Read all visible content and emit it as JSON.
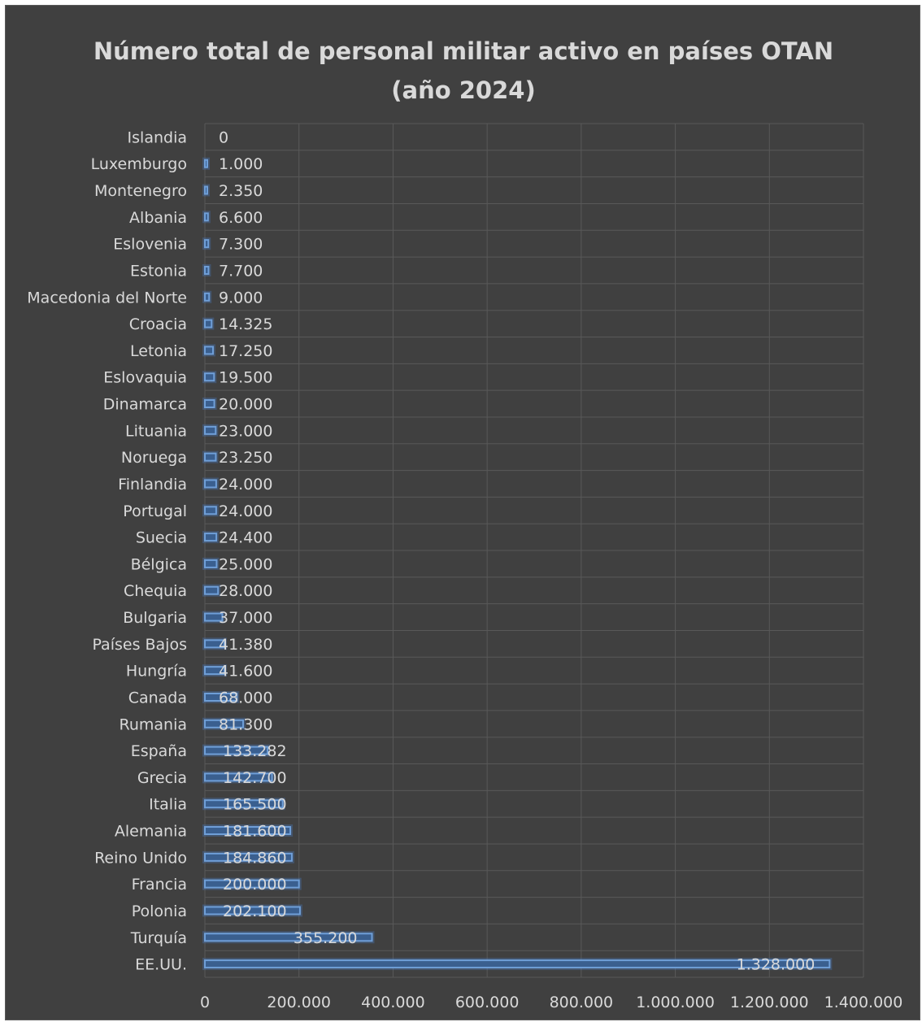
{
  "colors": {
    "background": "#404040",
    "text": "#d9d9d9",
    "grid": "#595959",
    "bar_fill": "#3a5f8f",
    "bar_outline": "#6f9fd8"
  },
  "chart_data": {
    "type": "bar",
    "orientation": "horizontal",
    "title_line1": "Número total de personal militar activo en países OTAN",
    "title_line2": "(año 2024)",
    "categories": [
      "Islandia",
      "Luxemburgo",
      "Montenegro",
      "Albania",
      "Eslovenia",
      "Estonia",
      "Macedonia del Norte",
      "Croacia",
      "Letonia",
      "Eslovaquia",
      "Dinamarca",
      "Lituania",
      "Noruega",
      "Finlandia",
      "Portugal",
      "Suecia",
      "Bélgica",
      "Chequia",
      "Bulgaria",
      "Países Bajos",
      "Hungría",
      "Canada",
      "Rumania",
      "España",
      "Grecia",
      "Italia",
      "Alemania",
      "Reino Unido",
      "Francia",
      "Polonia",
      "Turquía",
      "EE.UU."
    ],
    "values": [
      0,
      1000,
      2350,
      6600,
      7300,
      7700,
      9000,
      14325,
      17250,
      19500,
      20000,
      23000,
      23250,
      24000,
      24000,
      24400,
      25000,
      28000,
      37000,
      41380,
      41600,
      68000,
      81300,
      133282,
      142700,
      165500,
      181600,
      184860,
      200000,
      202100,
      355200,
      1328000
    ],
    "value_labels": [
      "0",
      "1.000",
      "2.350",
      "6.600",
      "7.300",
      "7.700",
      "9.000",
      "14.325",
      "17.250",
      "19.500",
      "20.000",
      "23.000",
      "23.250",
      "24.000",
      "24.000",
      "24.400",
      "25.000",
      "28.000",
      "37.000",
      "41.380",
      "41.600",
      "68.000",
      "81.300",
      "133.282",
      "142.700",
      "165.500",
      "181.600",
      "184.860",
      "200.000",
      "202.100",
      "355.200",
      "1.328.000"
    ],
    "xlim": [
      0,
      1400000
    ],
    "x_ticks": [
      0,
      200000,
      400000,
      600000,
      800000,
      1000000,
      1200000,
      1400000
    ],
    "x_tick_labels": [
      "0",
      "200.000",
      "400.000",
      "600.000",
      "800.000",
      "1.000.000",
      "1.200.000",
      "1.400.000"
    ],
    "grid": true,
    "legend": "none"
  }
}
